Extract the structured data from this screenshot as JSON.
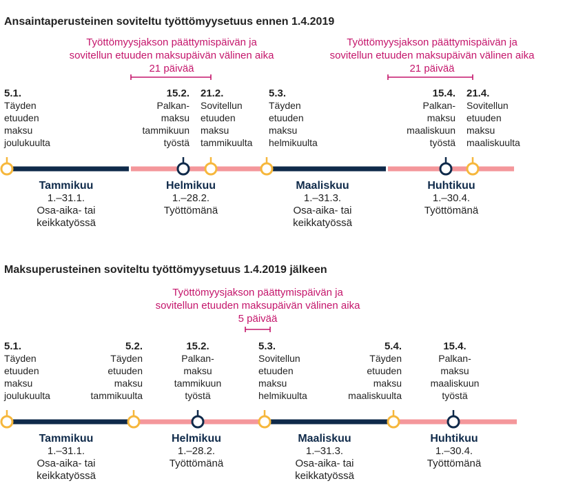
{
  "colors": {
    "navy": "#0f2a4a",
    "pink": "#f4979b",
    "yellow": "#f6b73c",
    "magenta": "#c4156b",
    "text": "#222222",
    "white": "#ffffff"
  },
  "sections": [
    {
      "id": "before",
      "title": "Ansaintaperusteinen soviteltu työttömyysetuus ennen 1.4.2019",
      "intervals": [
        {
          "lines": [
            "Työttömyysjakson päättymispäivän ja",
            "sovitellun etuuden maksupäivän välinen aika",
            "21 päivää"
          ]
        },
        {
          "lines": [
            "Työttömyysjakson päättymispäivän ja",
            "sovitellun etuuden maksupäivän välinen aika",
            "21 päivää"
          ]
        }
      ],
      "events": [
        {
          "date": "5.1.",
          "lines": [
            "Täyden",
            "etuuden",
            "maksu",
            "joulukuulta"
          ],
          "marker": "yellow"
        },
        {
          "date": "15.2.",
          "lines": [
            "Palkan-",
            "maksu",
            "tammikuun",
            "työstä"
          ],
          "marker": "navy"
        },
        {
          "date": "21.2.",
          "lines": [
            "Sovitellun",
            "etuuden",
            "maksu",
            "tammikuulta"
          ],
          "marker": "yellow"
        },
        {
          "date": "5.3.",
          "lines": [
            "Täyden",
            "etuuden",
            "maksu",
            "helmikuulta"
          ],
          "marker": "yellow"
        },
        {
          "date": "15.4.",
          "lines": [
            "Palkan-",
            "maksu",
            "maaliskuun",
            "työstä"
          ],
          "marker": "navy"
        },
        {
          "date": "21.4.",
          "lines": [
            "Sovitellun",
            "etuuden",
            "maksu",
            "maaliskuulta"
          ],
          "marker": "yellow"
        }
      ],
      "months": [
        {
          "name": "Tammikuu",
          "lines": [
            "1.–31.1.",
            "Osa-aika- tai",
            "keikkatyössä"
          ],
          "status": "part-time"
        },
        {
          "name": "Helmikuu",
          "lines": [
            "1.–28.2.",
            "Työttömänä"
          ],
          "status": "unemployed"
        },
        {
          "name": "Maaliskuu",
          "lines": [
            "1.–31.3.",
            "Osa-aika- tai",
            "keikkatyössä"
          ],
          "status": "part-time"
        },
        {
          "name": "Huhtikuu",
          "lines": [
            "1.–30.4.",
            "Työttömänä"
          ],
          "status": "unemployed"
        }
      ]
    },
    {
      "id": "after",
      "title": "Maksuperusteinen soviteltu työttömyysetuus 1.4.2019 jälkeen",
      "intervals": [
        {
          "lines": [
            "Työttömyysjakson päättymispäivän ja",
            "sovitellun etuuden maksupäivän välinen aika",
            "5 päivää"
          ]
        }
      ],
      "events": [
        {
          "date": "5.1.",
          "lines": [
            "Täyden",
            "etuuden",
            "maksu",
            "joulukuulta"
          ],
          "marker": "yellow"
        },
        {
          "date": "5.2.",
          "lines": [
            "Täyden",
            "etuuden",
            "maksu",
            "tammikuulta"
          ],
          "marker": "yellow"
        },
        {
          "date": "15.2.",
          "lines": [
            "Palkan-",
            "maksu",
            "tammikuun",
            "työstä"
          ],
          "marker": "navy"
        },
        {
          "date": "5.3.",
          "lines": [
            "Sovitellun",
            "etuuden",
            "maksu",
            "helmikuulta"
          ],
          "marker": "yellow"
        },
        {
          "date": "5.4.",
          "lines": [
            "Täyden",
            "etuuden",
            "maksu",
            "maaliskuulta"
          ],
          "marker": "yellow"
        },
        {
          "date": "15.4.",
          "lines": [
            "Palkan-",
            "maksu",
            "maaliskuun",
            "työstä"
          ],
          "marker": "navy"
        }
      ],
      "months": [
        {
          "name": "Tammikuu",
          "lines": [
            "1.–31.1.",
            "Osa-aika- tai",
            "keikkatyössä"
          ],
          "status": "part-time"
        },
        {
          "name": "Helmikuu",
          "lines": [
            "1.–28.2.",
            "Työttömänä"
          ],
          "status": "unemployed"
        },
        {
          "name": "Maaliskuu",
          "lines": [
            "1.–31.3.",
            "Osa-aika- tai",
            "keikkatyössä"
          ],
          "status": "part-time"
        },
        {
          "name": "Huhtikuu",
          "lines": [
            "1.–30.4.",
            "Työttömänä"
          ],
          "status": "unemployed"
        }
      ]
    }
  ]
}
